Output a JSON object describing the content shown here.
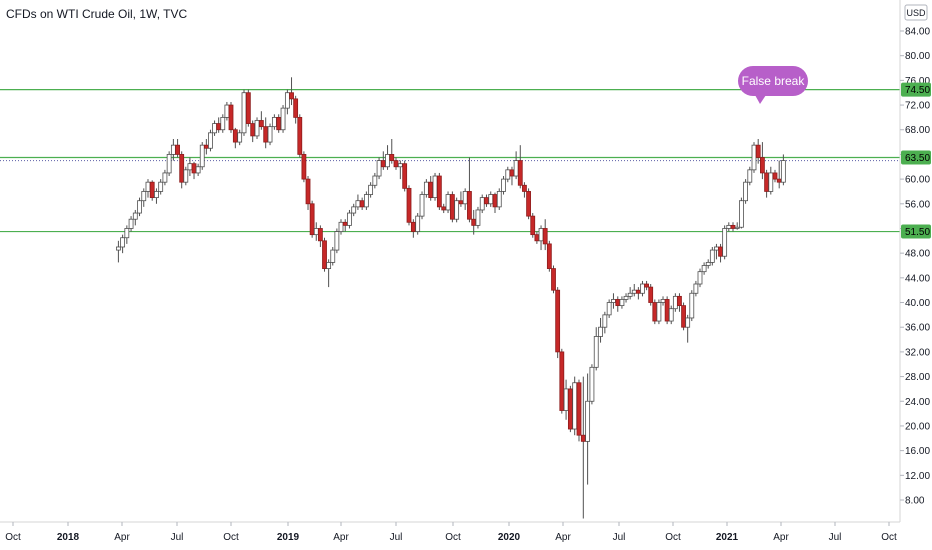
{
  "chart_data": {
    "type": "candlestick",
    "title": "CFDs on WTI Crude Oil, 1W, TVC",
    "currency": "USD",
    "y_axis_position": "right",
    "ylim": [
      4.0,
      85.0
    ],
    "y_ticks": [
      "84.00",
      "80.00",
      "76.00",
      "72.00",
      "68.00",
      "64.00",
      "60.00",
      "56.00",
      "52.00",
      "48.00",
      "44.00",
      "40.00",
      "36.00",
      "32.00",
      "28.00",
      "24.00",
      "20.00",
      "16.00",
      "12.00",
      "8.00"
    ],
    "x_axis": {
      "ticks": [
        {
          "label": "Oct",
          "date": "2017-10-01",
          "bold": false
        },
        {
          "label": "2018",
          "date": "2018-01-01",
          "bold": true
        },
        {
          "label": "Apr",
          "date": "2018-04-01",
          "bold": false
        },
        {
          "label": "Jul",
          "date": "2018-07-01",
          "bold": false
        },
        {
          "label": "Oct",
          "date": "2018-10-01",
          "bold": false
        },
        {
          "label": "2019",
          "date": "2019-01-01",
          "bold": true
        },
        {
          "label": "Apr",
          "date": "2019-04-01",
          "bold": false
        },
        {
          "label": "Jul",
          "date": "2019-07-01",
          "bold": false
        },
        {
          "label": "Oct",
          "date": "2019-10-01",
          "bold": false
        },
        {
          "label": "2020",
          "date": "2020-01-01",
          "bold": true
        },
        {
          "label": "Apr",
          "date": "2020-04-01",
          "bold": false
        },
        {
          "label": "Jul",
          "date": "2020-07-01",
          "bold": false
        },
        {
          "label": "Oct",
          "date": "2020-10-01",
          "bold": false
        },
        {
          "label": "2021",
          "date": "2021-01-01",
          "bold": true
        },
        {
          "label": "Apr",
          "date": "2021-04-01",
          "bold": false
        },
        {
          "label": "Jul",
          "date": "2021-07-01",
          "bold": false
        },
        {
          "label": "Oct",
          "date": "2021-10-01",
          "bold": false
        }
      ]
    },
    "horizontal_levels": [
      {
        "value": 74.5,
        "label": "74.50",
        "color": "#4caf50"
      },
      {
        "value": 63.5,
        "label": "63.50",
        "color": "#4caf50"
      },
      {
        "value": 51.5,
        "label": "51.50",
        "color": "#4caf50"
      }
    ],
    "last_price_line": {
      "value": 63.0,
      "style": "dotted",
      "color": "#5b5ea6"
    },
    "annotation": {
      "text": "False break",
      "color": "#b75fc9"
    },
    "colors": {
      "up_fill": "#ffffff",
      "up_border": "#505050",
      "down_fill": "#c62828",
      "down_border": "#8e1c1c",
      "wick": "#505050"
    },
    "series": [
      {
        "name": "",
        "ohlc": [
          [
            48.5,
            50,
            46.5,
            49
          ],
          [
            49,
            51,
            48,
            50.5
          ],
          [
            50.5,
            52.5,
            49.5,
            52
          ],
          [
            52,
            54,
            51.5,
            53.5
          ],
          [
            53.5,
            55,
            52.5,
            54.5
          ],
          [
            54.5,
            57,
            54,
            56.5
          ],
          [
            56.5,
            58.5,
            55.5,
            58
          ],
          [
            58,
            60,
            57,
            59.5
          ],
          [
            59.5,
            59.8,
            56.5,
            57
          ],
          [
            57,
            58.5,
            56,
            58
          ],
          [
            58,
            60,
            57.5,
            59.5
          ],
          [
            59.5,
            61.5,
            59,
            61
          ],
          [
            61,
            64.5,
            60.5,
            64
          ],
          [
            64,
            66.5,
            63,
            65.5
          ],
          [
            65.5,
            66.5,
            63.5,
            64
          ],
          [
            64,
            64.5,
            58.5,
            59.5
          ],
          [
            59.5,
            62,
            59,
            61.5
          ],
          [
            61.5,
            63.5,
            60.5,
            62.5
          ],
          [
            62.5,
            62.8,
            60,
            61
          ],
          [
            61,
            62.5,
            60.5,
            62
          ],
          [
            62,
            66,
            61.5,
            65.5
          ],
          [
            65.5,
            66.5,
            64,
            65
          ],
          [
            65,
            68,
            64.5,
            67.5
          ],
          [
            67.5,
            69.5,
            67,
            69
          ],
          [
            69,
            70,
            67.5,
            68
          ],
          [
            68,
            70.5,
            67.5,
            70
          ],
          [
            70,
            72.5,
            69.5,
            72
          ],
          [
            72,
            72.5,
            67.5,
            68
          ],
          [
            68,
            68.3,
            65,
            66
          ],
          [
            66,
            68,
            65.5,
            67.5
          ],
          [
            67.5,
            74.5,
            67,
            74
          ],
          [
            74,
            74.5,
            68.5,
            69
          ],
          [
            69,
            69.5,
            66,
            67
          ],
          [
            67,
            70,
            66.5,
            69.5
          ],
          [
            69.5,
            71,
            68,
            68.5
          ],
          [
            68.5,
            70,
            65,
            66
          ],
          [
            66,
            69,
            65.5,
            68.5
          ],
          [
            68.5,
            70.5,
            68,
            70
          ],
          [
            70,
            70.5,
            67.5,
            68
          ],
          [
            68,
            72,
            67.5,
            71.5
          ],
          [
            71.5,
            74.5,
            70.5,
            74
          ],
          [
            74,
            76.5,
            72,
            73
          ],
          [
            73,
            73.5,
            69,
            70
          ],
          [
            70,
            70.5,
            63.5,
            64
          ],
          [
            64,
            64.5,
            59.5,
            60
          ],
          [
            60,
            60.5,
            55,
            56
          ],
          [
            56,
            56.5,
            50.5,
            51
          ],
          [
            51,
            53,
            50,
            52
          ],
          [
            52,
            52.5,
            49,
            50
          ],
          [
            50,
            50.5,
            45,
            45.5
          ],
          [
            45.5,
            47,
            42.5,
            46.5
          ],
          [
            46.5,
            49,
            46,
            48.5
          ],
          [
            48.5,
            52,
            48,
            51.5
          ],
          [
            51.5,
            53.5,
            51,
            53
          ],
          [
            53,
            53.5,
            51.5,
            52.5
          ],
          [
            52.5,
            55,
            52,
            54.5
          ],
          [
            54.5,
            56,
            54,
            55.5
          ],
          [
            55.5,
            57.5,
            55,
            56.5
          ],
          [
            56.5,
            57,
            55,
            55.5
          ],
          [
            55.5,
            58,
            55,
            57.5
          ],
          [
            57.5,
            59.5,
            57,
            59
          ],
          [
            59,
            61,
            58.5,
            60.5
          ],
          [
            60.5,
            63.5,
            60,
            63
          ],
          [
            63,
            64.5,
            61.5,
            62
          ],
          [
            62,
            65.5,
            61.5,
            64
          ],
          [
            64,
            66.5,
            62.5,
            63
          ],
          [
            63,
            63.5,
            61.5,
            62
          ],
          [
            62,
            63,
            60,
            62.5
          ],
          [
            62.5,
            63,
            58,
            58.5
          ],
          [
            58.5,
            59,
            52.5,
            53
          ],
          [
            53,
            53.5,
            50.5,
            51.5
          ],
          [
            51.5,
            54.5,
            51,
            54
          ],
          [
            54,
            58,
            53.5,
            57.5
          ],
          [
            57.5,
            60,
            57,
            59.5
          ],
          [
            59.5,
            60.5,
            56.5,
            57
          ],
          [
            57,
            61,
            56.5,
            60.5
          ],
          [
            60.5,
            61,
            55,
            55.5
          ],
          [
            55.5,
            56,
            54.5,
            55
          ],
          [
            55,
            58,
            54.5,
            57.5
          ],
          [
            57.5,
            58,
            53,
            53.5
          ],
          [
            53.5,
            57,
            53,
            56.5
          ],
          [
            56.5,
            58,
            55.5,
            56
          ],
          [
            56,
            58.5,
            55,
            58
          ],
          [
            58,
            63.5,
            53,
            53.5
          ],
          [
            53.5,
            55,
            51,
            52.5
          ],
          [
            52.5,
            55.5,
            52,
            55
          ],
          [
            55,
            57.5,
            54.5,
            57
          ],
          [
            57,
            57.5,
            55.5,
            56
          ],
          [
            56,
            58,
            55.5,
            57.5
          ],
          [
            57.5,
            57.8,
            54.5,
            55.5
          ],
          [
            55.5,
            58.5,
            55,
            58
          ],
          [
            58,
            60.5,
            57.5,
            60
          ],
          [
            60,
            62,
            59.5,
            61.5
          ],
          [
            61.5,
            62,
            59,
            60.5
          ],
          [
            60.5,
            64.5,
            60,
            63
          ],
          [
            63,
            65.5,
            58.5,
            59
          ],
          [
            59,
            59.5,
            57,
            58
          ],
          [
            58,
            58.5,
            53.5,
            54
          ],
          [
            54,
            54.5,
            50.5,
            51
          ],
          [
            51,
            51.5,
            49.5,
            50
          ],
          [
            50,
            52.5,
            48.5,
            52
          ],
          [
            52,
            53.5,
            48.5,
            49.5
          ],
          [
            49.5,
            50,
            45,
            45.5
          ],
          [
            45.5,
            46,
            41.5,
            42
          ],
          [
            42,
            42.5,
            31,
            32
          ],
          [
            32,
            32.5,
            22,
            22.5
          ],
          [
            22.5,
            27.5,
            21,
            26
          ],
          [
            26,
            26.5,
            19,
            19.5
          ],
          [
            19.5,
            28,
            18.5,
            27
          ],
          [
            27,
            27.5,
            17.5,
            18.5
          ],
          [
            18.5,
            28,
            5,
            17.5
          ],
          [
            17.5,
            28.5,
            10.5,
            24
          ],
          [
            24,
            30,
            23.5,
            29.5
          ],
          [
            29.5,
            36,
            29,
            34.5
          ],
          [
            34.5,
            37.5,
            33.5,
            36
          ],
          [
            36,
            38.5,
            35,
            38
          ],
          [
            38,
            40.5,
            37.5,
            40
          ],
          [
            40,
            41.5,
            39,
            40.5
          ],
          [
            40.5,
            41,
            38.5,
            39.5
          ],
          [
            39.5,
            41,
            39,
            40.5
          ],
          [
            40.5,
            41.5,
            40,
            41
          ],
          [
            41,
            42.5,
            40.5,
            41.5
          ],
          [
            41.5,
            43,
            41,
            42
          ],
          [
            42,
            42.5,
            40.5,
            41.5
          ],
          [
            41.5,
            43.5,
            41,
            43
          ],
          [
            43,
            43.5,
            42,
            42.5
          ],
          [
            42.5,
            43,
            39.5,
            40
          ],
          [
            40,
            40.5,
            36.5,
            37
          ],
          [
            37,
            40.5,
            36.5,
            40
          ],
          [
            40,
            41,
            39.5,
            40.5
          ],
          [
            40.5,
            41,
            36.5,
            37
          ],
          [
            37,
            39.5,
            36.5,
            39
          ],
          [
            39,
            41.5,
            38.5,
            41
          ],
          [
            41,
            41.5,
            38.5,
            39.5
          ],
          [
            39.5,
            40,
            35.5,
            36
          ],
          [
            36,
            38,
            33.5,
            37.5
          ],
          [
            37.5,
            42,
            37,
            41.5
          ],
          [
            41.5,
            43.5,
            41,
            43
          ],
          [
            43,
            45.5,
            42.5,
            45
          ],
          [
            45,
            46.5,
            44.5,
            46
          ],
          [
            46,
            47,
            45.5,
            46.5
          ],
          [
            46.5,
            49,
            46,
            48.5
          ],
          [
            48.5,
            49.5,
            47,
            49
          ],
          [
            49,
            49.5,
            46.5,
            47.5
          ],
          [
            47.5,
            52.5,
            47,
            52
          ],
          [
            52,
            53,
            51.5,
            52.5
          ],
          [
            52.5,
            53,
            51.5,
            52
          ],
          [
            52,
            53,
            51.8,
            52.2
          ],
          [
            52.2,
            57,
            52,
            56.5
          ],
          [
            56.5,
            60,
            56,
            59.5
          ],
          [
            59.5,
            62,
            59,
            61.5
          ],
          [
            61.5,
            66,
            61,
            65.5
          ],
          [
            65.5,
            66.5,
            62.5,
            63.5
          ],
          [
            63.5,
            66,
            60,
            61
          ],
          [
            61,
            61.5,
            57,
            58
          ],
          [
            58,
            62,
            57.5,
            61
          ],
          [
            61,
            61.5,
            59.5,
            60
          ],
          [
            60,
            63,
            58.5,
            59.5
          ],
          [
            59.5,
            64,
            59,
            63
          ]
        ]
      }
    ]
  }
}
